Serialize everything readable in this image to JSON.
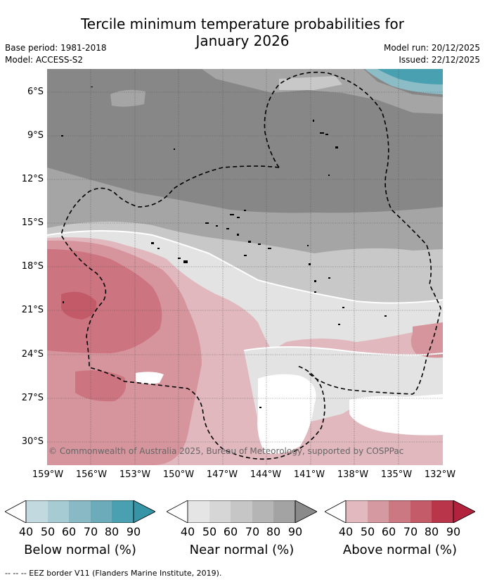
{
  "header": {
    "title_line1": "Tercile minimum temperature probabilities for",
    "title_line2": "January 2026",
    "base_period": "Base period: 1981-2018",
    "model": "Model: ACCESS-S2",
    "model_run": "Model run: 20/12/2025",
    "issued": "Issued: 22/12/2025"
  },
  "map": {
    "lat_labels": [
      "6°S",
      "9°S",
      "12°S",
      "15°S",
      "18°S",
      "21°S",
      "24°S",
      "27°S",
      "30°S"
    ],
    "lon_labels": [
      "159°W",
      "156°W",
      "153°W",
      "150°W",
      "147°W",
      "144°W",
      "141°W",
      "138°W",
      "135°W",
      "132°W"
    ],
    "copyright": "© Commonwealth of Australia 2025, Bureau of Meteorology, supported by COSPPac",
    "colors": {
      "near_dark": "#878787",
      "near_mid": "#a5a5a5",
      "near_light": "#c8c8c8",
      "near_pale": "#e3e3e3",
      "above_pale": "#e0b8be",
      "above_light": "#d6959d",
      "above_mid": "#cc7480",
      "above_dark": "#c35a68",
      "below_light": "#8cbcc6",
      "below_dark": "#48a0b0"
    }
  },
  "colorbars": {
    "below": {
      "label": "Below normal (%)",
      "ticks": [
        "40",
        "50",
        "60",
        "70",
        "80",
        "90"
      ],
      "colors": [
        "#c2d9df",
        "#a6cbd3",
        "#88b9c4",
        "#6cabb9",
        "#4aa0b1",
        "#3594a6"
      ]
    },
    "near": {
      "label": "Near normal (%)",
      "ticks": [
        "40",
        "50",
        "60",
        "70",
        "80",
        "90"
      ],
      "colors": [
        "#e5e5e5",
        "#d6d6d6",
        "#c6c6c6",
        "#b5b5b5",
        "#a3a3a3",
        "#8a8a8a"
      ]
    },
    "above": {
      "label": "Above normal (%)",
      "ticks": [
        "40",
        "50",
        "60",
        "70",
        "80",
        "90"
      ],
      "colors": [
        "#e2b9bf",
        "#d59aa1",
        "#cc7882",
        "#c45b69",
        "#b9364a",
        "#b2223c"
      ]
    }
  },
  "footer": {
    "eez_legend": "-- -- -- EEZ border V11 (Flanders Marine Institute, 2019)."
  }
}
